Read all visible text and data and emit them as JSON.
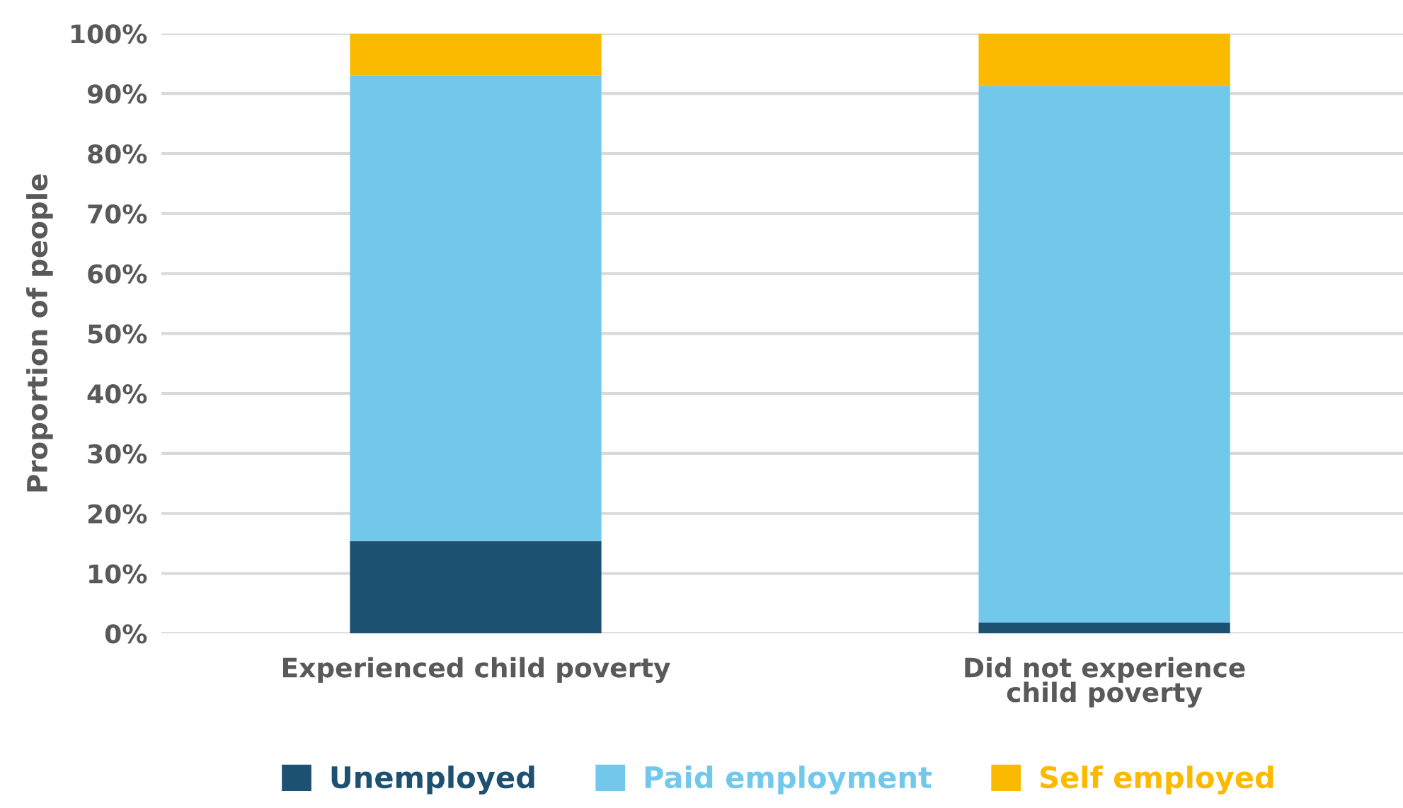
{
  "chart_data": {
    "type": "bar",
    "stacked": true,
    "categories": [
      "Experienced child poverty",
      "Did not experience\nchild poverty"
    ],
    "series": [
      {
        "name": "Unemployed",
        "color": "#1d5172",
        "values": [
          15.4,
          1.8
        ]
      },
      {
        "name": "Paid employment",
        "color": "#72c8ea",
        "values": [
          77.6,
          89.5
        ]
      },
      {
        "name": "Self employed",
        "color": "#fbba00",
        "values": [
          7.0,
          8.7
        ]
      }
    ],
    "ylabel": "Proportion of people",
    "ylim": [
      0,
      100
    ],
    "yticks": [
      {
        "value": 0,
        "label": "0%"
      },
      {
        "value": 10,
        "label": "10%"
      },
      {
        "value": 20,
        "label": "20%"
      },
      {
        "value": 30,
        "label": "30%"
      },
      {
        "value": 40,
        "label": "40%"
      },
      {
        "value": 50,
        "label": "50%"
      },
      {
        "value": 60,
        "label": "60%"
      },
      {
        "value": 70,
        "label": "70%"
      },
      {
        "value": 80,
        "label": "80%"
      },
      {
        "value": 90,
        "label": "90%"
      },
      {
        "value": 100,
        "label": "100%"
      }
    ],
    "grid": "y",
    "legend": "bottom"
  }
}
